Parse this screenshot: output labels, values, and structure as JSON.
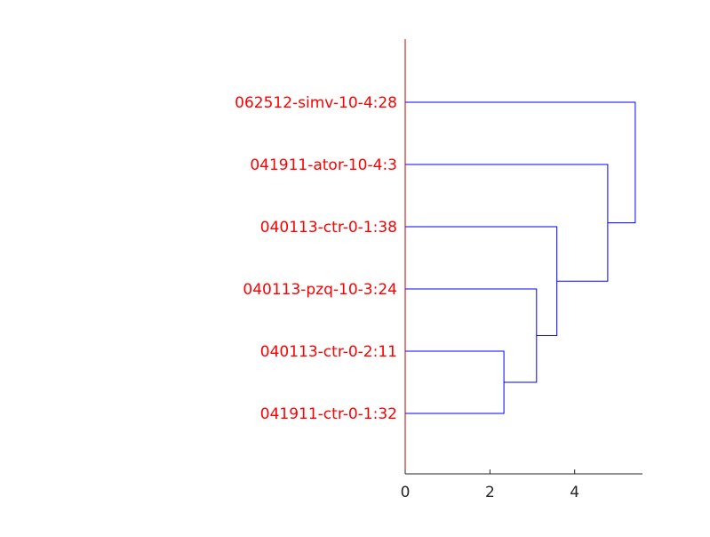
{
  "chart_data": {
    "type": "dendrogram",
    "orientation": "horizontal",
    "leaves": [
      "062512-simv-10-4:28",
      "041911-ator-10-4:3",
      "040113-ctr-0-1:38",
      "040113-pzq-10-3:24",
      "040113-ctr-0-2:11",
      "041911-ctr-0-1:32"
    ],
    "merges": [
      {
        "left": "041911-ctr-0-1:32",
        "right": "040113-ctr-0-2:11",
        "height": 2.33
      },
      {
        "left": "merge-1",
        "right": "040113-pzq-10-3:24",
        "height": 3.1
      },
      {
        "left": "merge-2",
        "right": "040113-ctr-0-1:38",
        "height": 3.58
      },
      {
        "left": "merge-3",
        "right": "041911-ator-10-4:3",
        "height": 4.78
      },
      {
        "left": "merge-4",
        "right": "062512-simv-10-4:28",
        "height": 5.43
      }
    ],
    "xlim": [
      0,
      5.6
    ],
    "xticks": [
      0,
      2,
      4
    ],
    "tick_labels": [
      "0",
      "2",
      "4"
    ],
    "grid": false,
    "colors": {
      "labels": "#ff0000",
      "axis_line": "#c00000",
      "links": "#0000ff",
      "ticks": "#262626"
    }
  }
}
